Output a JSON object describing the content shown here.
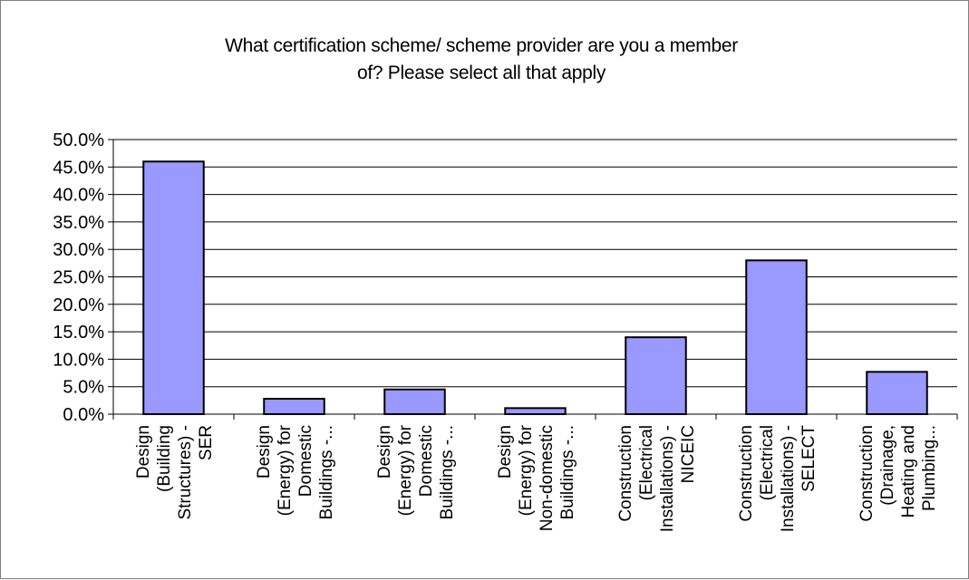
{
  "chart_data": {
    "type": "bar",
    "title": "What certification scheme/ scheme provider are you a member of? Please select all that apply",
    "title_lines": [
      "What certification scheme/ scheme provider are you a member",
      "of?    Please select all that apply"
    ],
    "xlabel": "",
    "ylabel": "",
    "ylim": [
      0,
      0.5
    ],
    "y_ticks": [
      "0.0%",
      "5.0%",
      "10.0%",
      "15.0%",
      "20.0%",
      "25.0%",
      "30.0%",
      "35.0%",
      "40.0%",
      "45.0%",
      "50.0%"
    ],
    "grid": true,
    "legend": "none",
    "bar_color": "#9999ff",
    "categories": [
      [
        "Design",
        "(Building",
        "Structures) -",
        "SER"
      ],
      [
        "Design",
        "(Energy) for",
        "Domestic",
        "Buildings -..."
      ],
      [
        "Design",
        "(Energy) for",
        "Domestic",
        "Buildings -..."
      ],
      [
        "Design",
        "(Energy) for",
        "Non-domestic",
        "Buildings -..."
      ],
      [
        "Construction",
        "(Electrical",
        "Installations) -",
        "NICEIC"
      ],
      [
        "Construction",
        "(Electrical",
        "Installations) -",
        "SELECT"
      ],
      [
        "Construction",
        "(Drainage,",
        "Heating and",
        "Plumbing..."
      ]
    ],
    "values": [
      0.46,
      0.028,
      0.045,
      0.011,
      0.14,
      0.28,
      0.077
    ]
  }
}
